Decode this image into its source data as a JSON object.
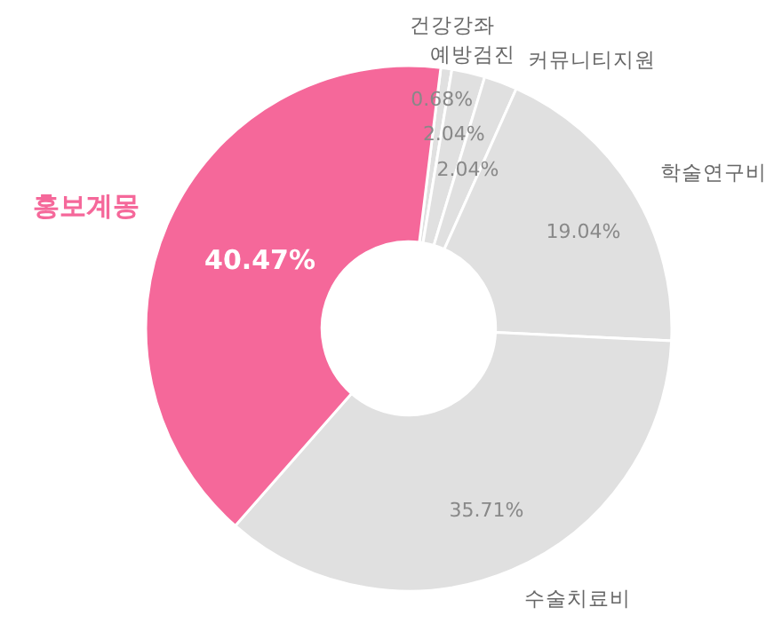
{
  "chart_data": {
    "type": "donut",
    "categories": [
      "건강강좌",
      "예방검진",
      "커뮤니티지원",
      "학술연구비",
      "수술치료비",
      "홍보계몽"
    ],
    "values": [
      0.68,
      2.04,
      2.04,
      19.04,
      35.71,
      40.47
    ],
    "value_labels": [
      "0.68%",
      "2.04%",
      "2.04%",
      "19.04%",
      "35.71%",
      "40.47%"
    ],
    "colors": [
      "#e0e0e0",
      "#e0e0e0",
      "#e0e0e0",
      "#e0e0e0",
      "#e0e0e0",
      "#f5689a"
    ]
  }
}
